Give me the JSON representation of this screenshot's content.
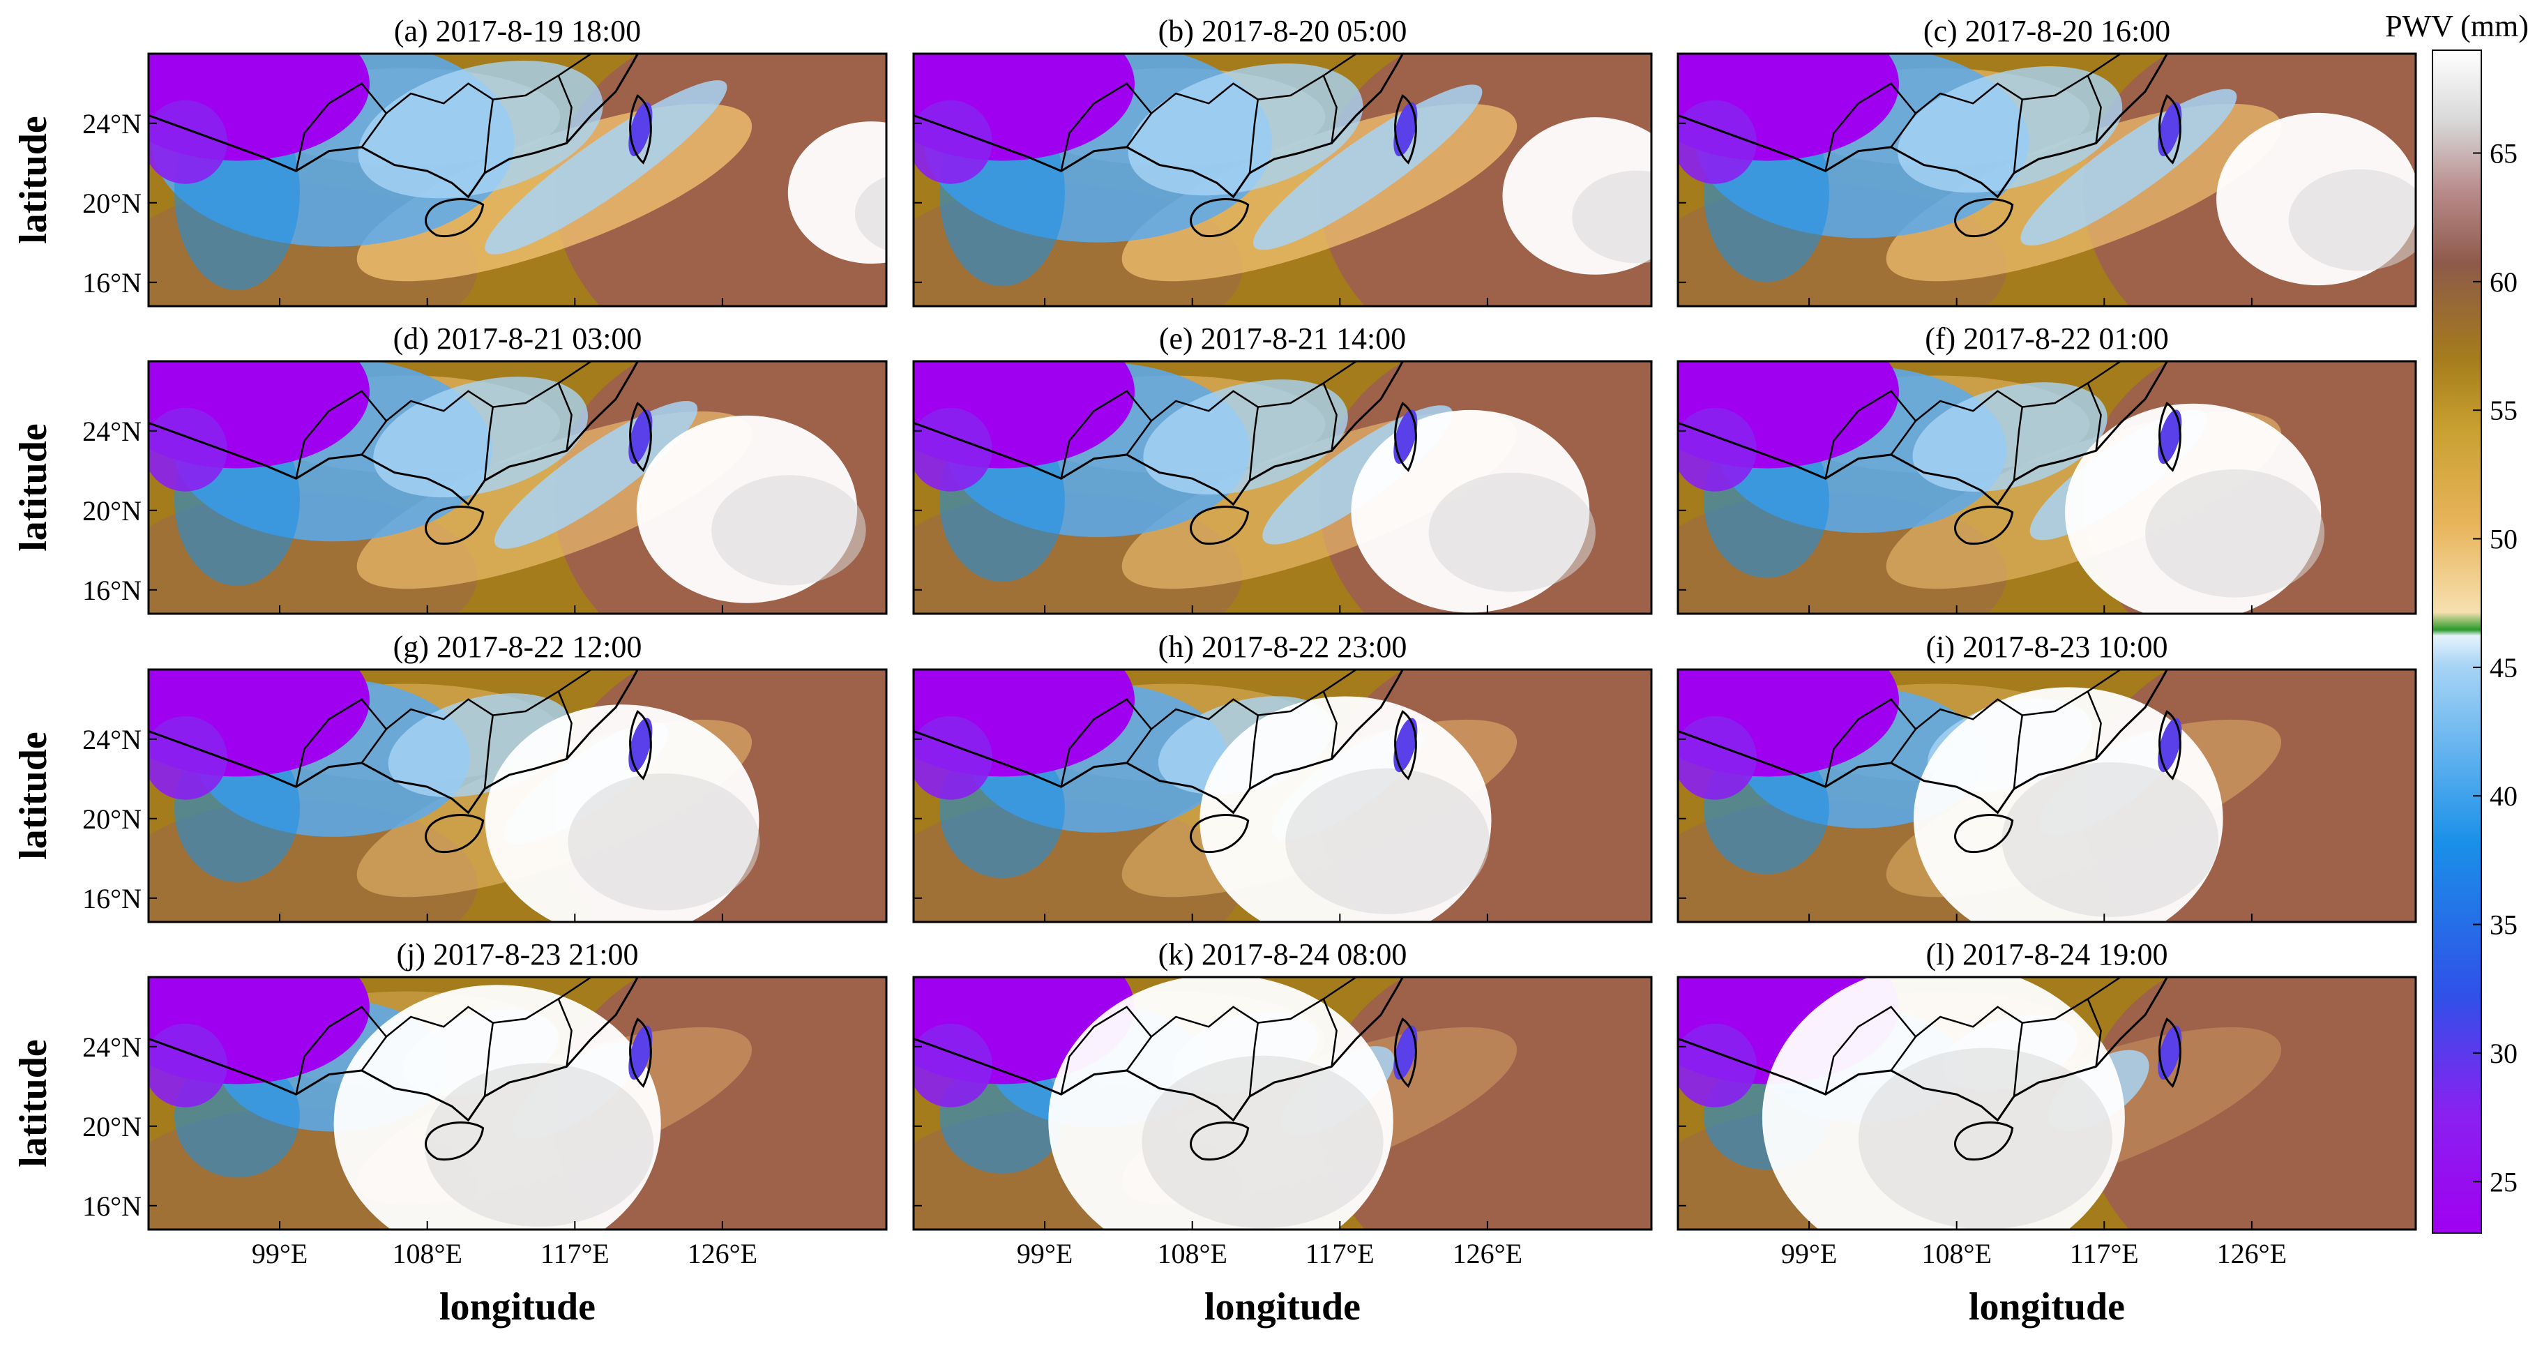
{
  "figure": {
    "ylabel": "latitude",
    "xlabel": "longitude",
    "lat_ticks": [
      "24°N",
      "20°N",
      "16°N"
    ],
    "lon_ticks": [
      "99°E",
      "108°E",
      "117°E",
      "126°E"
    ]
  },
  "panels": [
    {
      "title": "(a) 2017-8-19 18:00"
    },
    {
      "title": "(b) 2017-8-20 05:00"
    },
    {
      "title": "(c) 2017-8-20 16:00"
    },
    {
      "title": "(d) 2017-8-21 03:00"
    },
    {
      "title": "(e) 2017-8-21 14:00"
    },
    {
      "title": "(f) 2017-8-22 01:00"
    },
    {
      "title": "(g) 2017-8-22 12:00"
    },
    {
      "title": "(h) 2017-8-22 23:00"
    },
    {
      "title": "(i) 2017-8-23 10:00"
    },
    {
      "title": "(j) 2017-8-23 21:00"
    },
    {
      "title": "(k) 2017-8-24 08:00"
    },
    {
      "title": "(l) 2017-8-24 19:00"
    }
  ],
  "colorbar": {
    "title": "PWV (mm)",
    "min": 23,
    "max": 69,
    "ticks": [
      65,
      60,
      55,
      50,
      45,
      40,
      35,
      30,
      25
    ],
    "colors": {
      "purple": "#a000f0",
      "blue": "#1a78e8",
      "light_blue": "#d8ecfb",
      "green": "#2a9a2a",
      "sand": "#f0c070",
      "olive": "#a47c1c",
      "brown": "#9c5a5a",
      "white": "#ffffff"
    }
  },
  "chart_data": {
    "type": "heatmap",
    "variable": "PWV (mm)",
    "lat_range": [
      "16°N",
      "24°N"
    ],
    "lon_range": [
      "99°E",
      "126°E"
    ],
    "value_range": [
      23,
      69
    ]
  }
}
